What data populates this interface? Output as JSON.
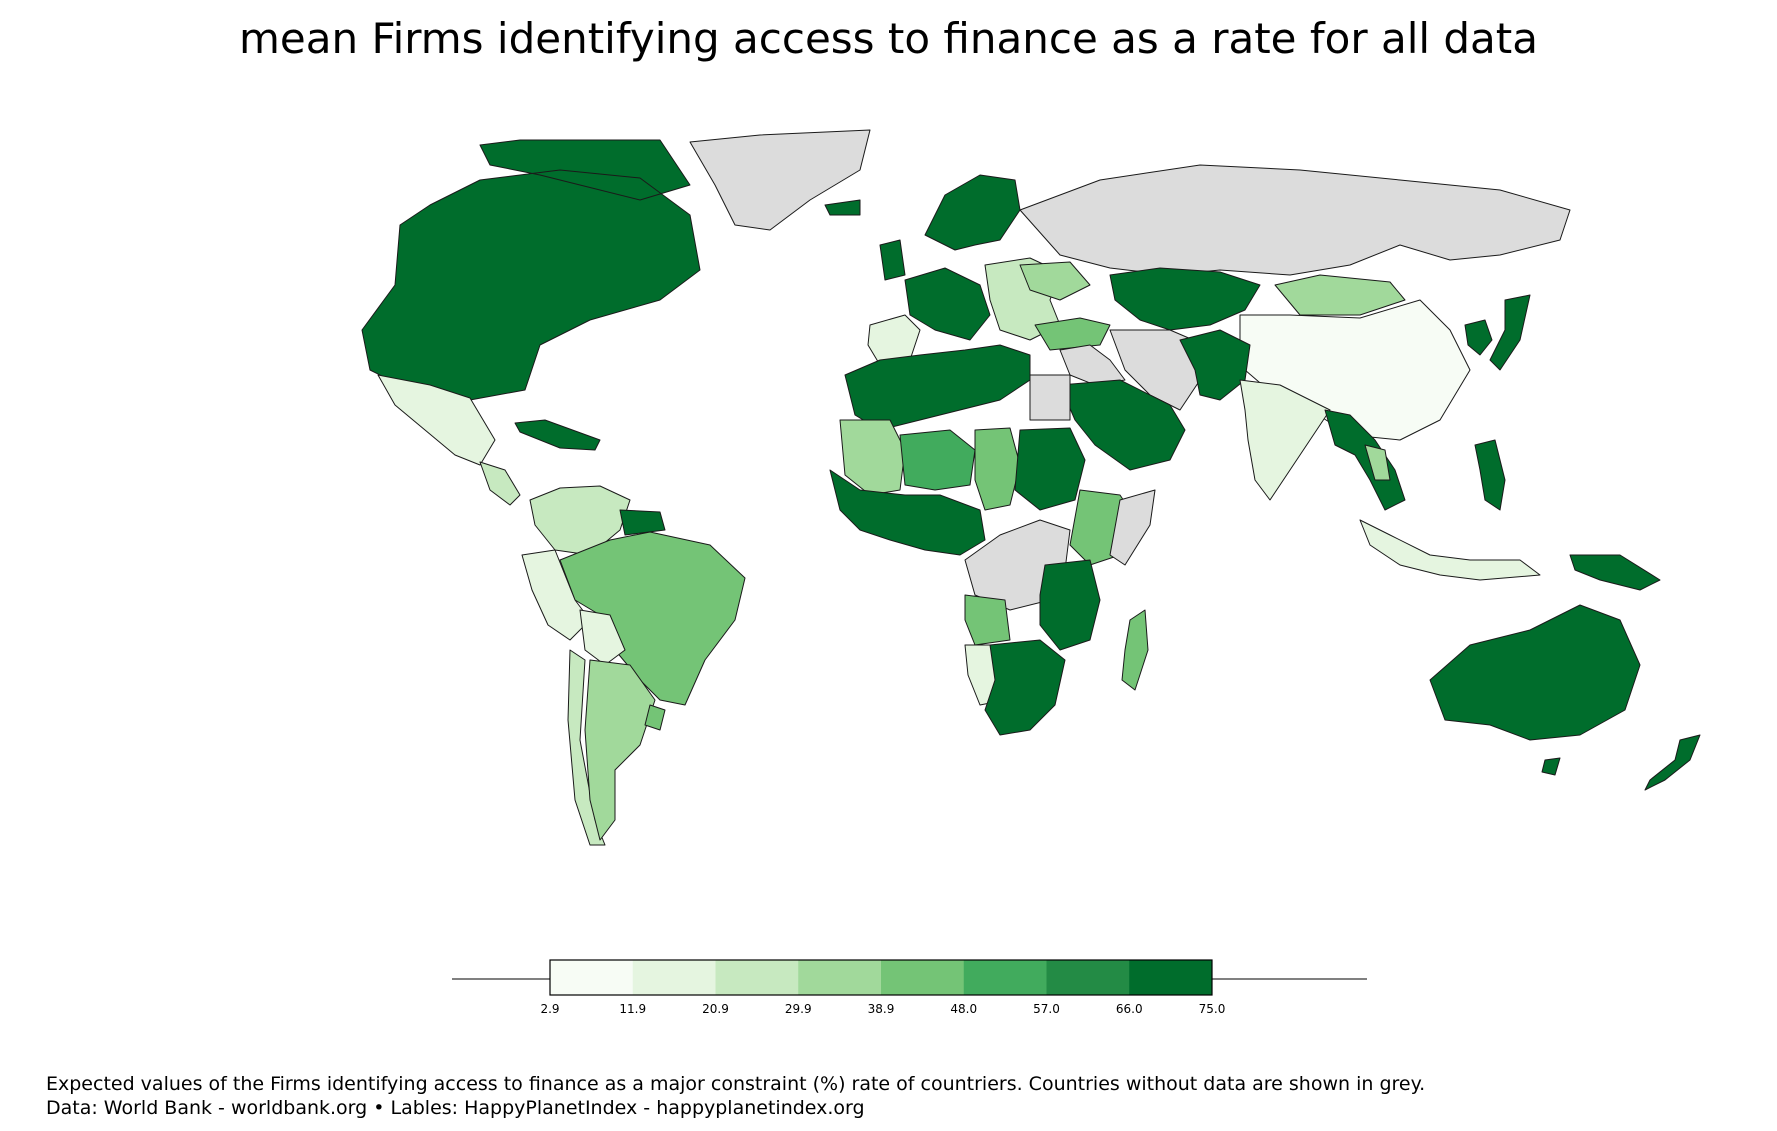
{
  "title": "mean Firms identifying access to finance as a rate for all data",
  "colors": {
    "no_data": "#dcdcdc",
    "border": "#1a1a1a",
    "bins": [
      "#f7fcf5",
      "#e5f5e0",
      "#c7e9c0",
      "#a1d99b",
      "#74c476",
      "#41ab5d",
      "#238b45",
      "#006d2c"
    ]
  },
  "legend": {
    "ticks": [
      "2.9",
      "11.9",
      "20.9",
      "29.9",
      "38.9",
      "48.0",
      "57.0",
      "66.0",
      "75.0"
    ]
  },
  "captions": {
    "line1": "Expected values of the Firms identifying access to finance as a major constraint (%) rate of countriers. Countries without data are shown in grey.",
    "line2": "Data: World Bank - worldbank.org • Lables: HappyPlanetIndex - happyplanetindex.org"
  },
  "regions": [
    {
      "name": "north-america",
      "bin": 7
    },
    {
      "name": "greenland",
      "bin": -1
    },
    {
      "name": "mexico",
      "bin": 1
    },
    {
      "name": "central-america",
      "bin": 2
    },
    {
      "name": "caribbean",
      "bin": 7
    },
    {
      "name": "colombia-venezuela",
      "bin": 2
    },
    {
      "name": "guianas",
      "bin": 7
    },
    {
      "name": "brazil",
      "bin": 4
    },
    {
      "name": "peru-ecuador",
      "bin": 1
    },
    {
      "name": "bolivia",
      "bin": 1
    },
    {
      "name": "chile",
      "bin": 2
    },
    {
      "name": "argentina",
      "bin": 3
    },
    {
      "name": "uruguay",
      "bin": 4
    },
    {
      "name": "iceland",
      "bin": 7
    },
    {
      "name": "iberia",
      "bin": 1
    },
    {
      "name": "western-europe",
      "bin": 7
    },
    {
      "name": "scandinavia",
      "bin": 7
    },
    {
      "name": "eastern-europe",
      "bin": 2
    },
    {
      "name": "ukraine",
      "bin": 3
    },
    {
      "name": "turkey",
      "bin": 4
    },
    {
      "name": "russia",
      "bin": -1
    },
    {
      "name": "kazakhstan-central-asia",
      "bin": 7
    },
    {
      "name": "mongolia",
      "bin": 3
    },
    {
      "name": "china",
      "bin": 0
    },
    {
      "name": "korea-japan",
      "bin": 7
    },
    {
      "name": "middle-east",
      "bin": -1
    },
    {
      "name": "arabia",
      "bin": 7
    },
    {
      "name": "afghanistan-pakistan",
      "bin": 7
    },
    {
      "name": "india",
      "bin": 1
    },
    {
      "name": "southeast-asia",
      "bin": 7
    },
    {
      "name": "thailand",
      "bin": 3
    },
    {
      "name": "indonesia",
      "bin": 1
    },
    {
      "name": "philippines",
      "bin": 7
    },
    {
      "name": "new-guinea",
      "bin": 7
    },
    {
      "name": "australia",
      "bin": 7
    },
    {
      "name": "new-zealand",
      "bin": 7
    },
    {
      "name": "north-africa",
      "bin": 7
    },
    {
      "name": "egypt",
      "bin": -1
    },
    {
      "name": "mali-mauritania",
      "bin": 3
    },
    {
      "name": "niger",
      "bin": 5
    },
    {
      "name": "chad",
      "bin": 4
    },
    {
      "name": "sudan",
      "bin": 7
    },
    {
      "name": "west-africa",
      "bin": 7
    },
    {
      "name": "central-africa",
      "bin": -1
    },
    {
      "name": "ethiopia-kenya",
      "bin": 4
    },
    {
      "name": "somalia",
      "bin": -1
    },
    {
      "name": "angola",
      "bin": 4
    },
    {
      "name": "namibia",
      "bin": 1
    },
    {
      "name": "southern-africa",
      "bin": 7
    },
    {
      "name": "east-africa",
      "bin": 7
    },
    {
      "name": "madagascar",
      "bin": 4
    }
  ]
}
